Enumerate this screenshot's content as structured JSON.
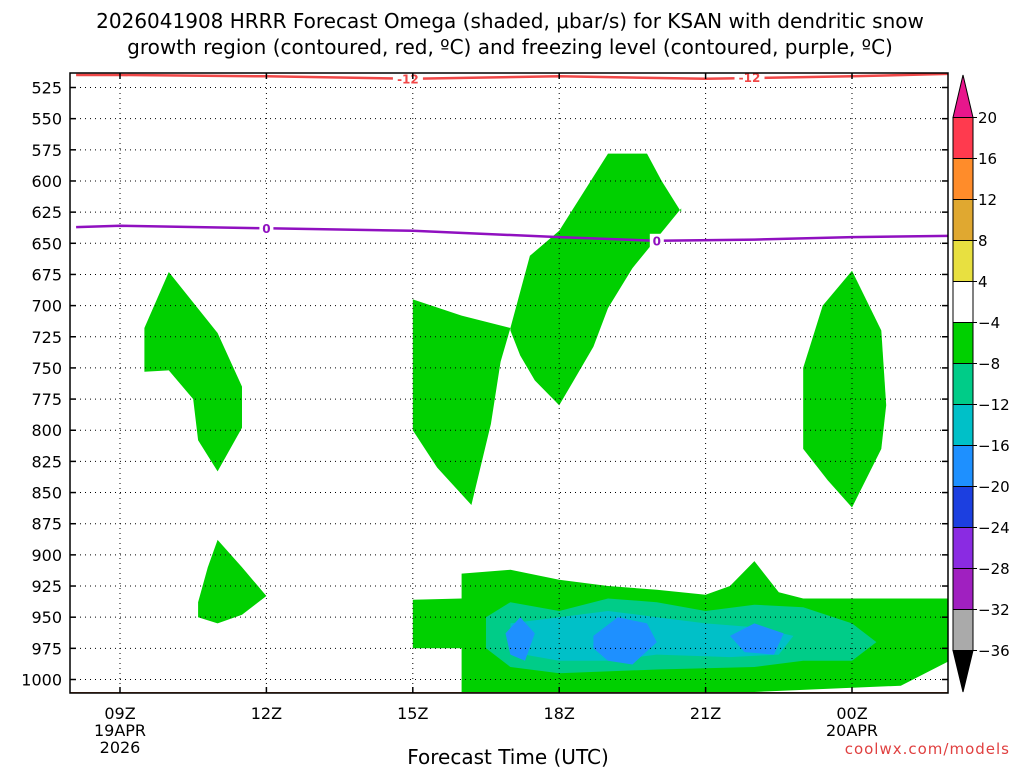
{
  "chart_data": {
    "type": "heatmap",
    "title_line1": "2026041908 HRRR Forecast Omega (shaded, μbar/s) for KSAN with dendritic snow",
    "title_line2": "growth region (contoured, red, ºC) and freezing level (contoured, purple, ºC)",
    "xlabel": "Forecast Time (UTC)",
    "credit": "coolwx.com/models",
    "x_ticks": [
      {
        "hour": 9,
        "label": "09Z",
        "sub1": "19APR",
        "sub2": "2026"
      },
      {
        "hour": 12,
        "label": "12Z",
        "sub1": "",
        "sub2": ""
      },
      {
        "hour": 15,
        "label": "15Z",
        "sub1": "",
        "sub2": ""
      },
      {
        "hour": 18,
        "label": "18Z",
        "sub1": "",
        "sub2": ""
      },
      {
        "hour": 21,
        "label": "21Z",
        "sub1": "",
        "sub2": ""
      },
      {
        "hour": 24,
        "label": "00Z",
        "sub1": "20APR",
        "sub2": ""
      }
    ],
    "xlim": [
      8.1,
      26.0
    ],
    "y_ticks": [
      "525",
      "550",
      "575",
      "600",
      "625",
      "650",
      "675",
      "700",
      "725",
      "750",
      "775",
      "800",
      "825",
      "850",
      "875",
      "900",
      "925",
      "950",
      "975",
      "1000"
    ],
    "ylim": [
      1010,
      515
    ],
    "colorbar": {
      "labels": [
        "20",
        "16",
        "12",
        "8",
        "4",
        "−4",
        "−8",
        "−12",
        "−16",
        "−20",
        "−24",
        "−28",
        "−32",
        "−36"
      ],
      "colors": [
        "#ff3a4e",
        "#ff8c2a",
        "#e0a830",
        "#e8e040",
        "#ffffff",
        "#00d000",
        "#00cc88",
        "#00c0c8",
        "#1e90ff",
        "#1c3fe0",
        "#8a2be2",
        "#a020c0",
        "#aaaaaa"
      ],
      "top_arrow_color": "#e8168c",
      "bottom_arrow_color": "#000000"
    },
    "freezing_level": {
      "color": "#9010c0",
      "label": "0",
      "points": [
        [
          8.1,
          637
        ],
        [
          9,
          636
        ],
        [
          12,
          638
        ],
        [
          15,
          640
        ],
        [
          18,
          645
        ],
        [
          20,
          648
        ],
        [
          22,
          647
        ],
        [
          24,
          645
        ],
        [
          26,
          644
        ]
      ],
      "label_at": [
        [
          12,
          638
        ],
        [
          20,
          648
        ]
      ]
    },
    "dgz_top": {
      "color": "#f04848",
      "label": "-12",
      "points": [
        [
          8.1,
          515
        ],
        [
          9,
          515
        ],
        [
          12,
          516
        ],
        [
          15,
          518
        ],
        [
          18,
          516
        ],
        [
          21,
          518
        ],
        [
          24,
          516
        ],
        [
          26,
          514
        ]
      ],
      "label_at": [
        [
          14.9,
          518
        ],
        [
          21.9,
          517
        ]
      ]
    },
    "ground": {
      "color": "#a0522d",
      "pressure": 1010
    },
    "omega_regions": [
      {
        "value": -6,
        "color": "#00d000",
        "points": [
          [
            9.5,
            718
          ],
          [
            10,
            673
          ],
          [
            11,
            722
          ],
          [
            11.5,
            765
          ],
          [
            11.5,
            798
          ],
          [
            11,
            833
          ],
          [
            10.6,
            808
          ],
          [
            10.5,
            775
          ],
          [
            10,
            752
          ],
          [
            9.5,
            753
          ]
        ]
      },
      {
        "value": -6,
        "color": "#00d000",
        "points": [
          [
            15,
            718
          ],
          [
            15,
            695
          ],
          [
            16,
            708
          ],
          [
            17,
            718
          ],
          [
            16.8,
            745
          ],
          [
            16.6,
            795
          ],
          [
            16.2,
            860
          ],
          [
            15.5,
            830
          ],
          [
            15,
            800
          ],
          [
            15,
            765
          ]
        ]
      },
      {
        "value": -6,
        "color": "#00d000",
        "points": [
          [
            17,
            720
          ],
          [
            17,
            718
          ],
          [
            17.4,
            660
          ],
          [
            18,
            640
          ],
          [
            19,
            578
          ],
          [
            19.8,
            578
          ],
          [
            20.1,
            600
          ],
          [
            20.5,
            625
          ],
          [
            20.5,
            622
          ],
          [
            19.5,
            670
          ],
          [
            19,
            702
          ],
          [
            18.7,
            733
          ],
          [
            18.3,
            760
          ],
          [
            18,
            780
          ],
          [
            17.5,
            760
          ],
          [
            17.2,
            740
          ]
        ]
      },
      {
        "value": -6,
        "color": "#00d000",
        "points": [
          [
            23,
            750
          ],
          [
            23.4,
            700
          ],
          [
            24,
            672
          ],
          [
            24.6,
            720
          ],
          [
            24.7,
            780
          ],
          [
            24.6,
            815
          ],
          [
            24,
            862
          ],
          [
            23.5,
            840
          ],
          [
            23,
            815
          ]
        ]
      },
      {
        "value": -6,
        "color": "#00d000",
        "points": [
          [
            10.6,
            938
          ],
          [
            10.8,
            910
          ],
          [
            11,
            888
          ],
          [
            11.5,
            910
          ],
          [
            12,
            933
          ],
          [
            11.5,
            948
          ],
          [
            11,
            955
          ],
          [
            10.6,
            950
          ]
        ]
      },
      {
        "value": -6,
        "color": "#00d000",
        "points": [
          [
            15,
            936
          ],
          [
            16,
            935
          ],
          [
            16,
            915
          ],
          [
            17,
            912
          ],
          [
            18,
            920
          ],
          [
            19,
            925
          ],
          [
            20,
            928
          ],
          [
            21,
            932
          ],
          [
            21.5,
            925
          ],
          [
            22,
            905
          ],
          [
            22.5,
            930
          ],
          [
            23,
            935
          ],
          [
            25,
            935
          ],
          [
            26,
            935
          ],
          [
            26,
            985
          ],
          [
            25,
            1005
          ],
          [
            22,
            1010
          ],
          [
            18,
            1012
          ],
          [
            16,
            1010
          ],
          [
            16,
            975
          ],
          [
            15,
            975
          ]
        ]
      },
      {
        "value": -10,
        "color": "#00cc88",
        "points": [
          [
            16.5,
            950
          ],
          [
            17,
            938
          ],
          [
            18,
            945
          ],
          [
            19,
            935
          ],
          [
            20,
            938
          ],
          [
            21,
            945
          ],
          [
            22,
            940
          ],
          [
            23,
            942
          ],
          [
            24,
            955
          ],
          [
            24.5,
            970
          ],
          [
            24,
            985
          ],
          [
            23,
            985
          ],
          [
            22,
            990
          ],
          [
            20,
            992
          ],
          [
            18,
            995
          ],
          [
            17,
            990
          ],
          [
            16.5,
            975
          ]
        ]
      },
      {
        "value": -14,
        "color": "#00c0c8",
        "points": [
          [
            17,
            955
          ],
          [
            18,
            950
          ],
          [
            19,
            945
          ],
          [
            20,
            950
          ],
          [
            21,
            955
          ],
          [
            22,
            958
          ],
          [
            22.8,
            965
          ],
          [
            22.5,
            980
          ],
          [
            21.5,
            982
          ],
          [
            20,
            980
          ],
          [
            19,
            985
          ],
          [
            18,
            985
          ],
          [
            17,
            978
          ]
        ]
      },
      {
        "value": -18,
        "color": "#1e90ff",
        "points": [
          [
            16.9,
            963
          ],
          [
            17.2,
            950
          ],
          [
            17.5,
            963
          ],
          [
            17.3,
            985
          ],
          [
            17,
            980
          ]
        ]
      },
      {
        "value": -18,
        "color": "#1e90ff",
        "points": [
          [
            18.7,
            965
          ],
          [
            19.2,
            950
          ],
          [
            19.8,
            955
          ],
          [
            20,
            970
          ],
          [
            19.5,
            988
          ],
          [
            19,
            985
          ],
          [
            18.7,
            975
          ]
        ]
      },
      {
        "value": -18,
        "color": "#1e90ff",
        "points": [
          [
            21.5,
            965
          ],
          [
            22,
            955
          ],
          [
            22.6,
            963
          ],
          [
            22.4,
            980
          ],
          [
            21.8,
            978
          ]
        ]
      }
    ]
  }
}
